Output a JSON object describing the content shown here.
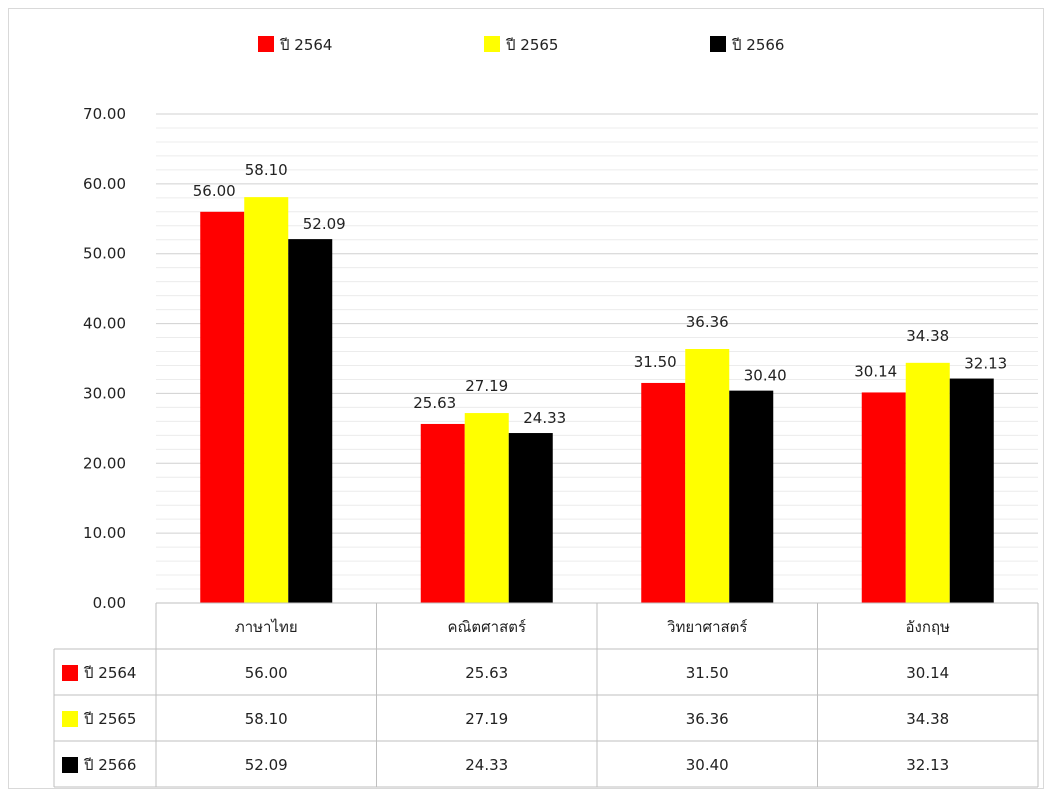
{
  "chart_data": {
    "type": "bar",
    "categories": [
      "ภาษาไทย",
      "คณิตศาสตร์",
      "วิทยาศาสตร์",
      "อังกฤษ"
    ],
    "series": [
      {
        "name": "ปี 2564",
        "color": "#ff0000",
        "values": [
          56.0,
          25.63,
          31.5,
          30.14
        ],
        "labels": [
          "56.00",
          "25.63",
          "31.50",
          "30.14"
        ]
      },
      {
        "name": "ปี 2565",
        "color": "#ffff00",
        "values": [
          58.1,
          27.19,
          36.36,
          34.38
        ],
        "labels": [
          "58.10",
          "27.19",
          "36.36",
          "34.38"
        ]
      },
      {
        "name": "ปี 2566",
        "color": "#000000",
        "values": [
          52.09,
          24.33,
          30.4,
          32.13
        ],
        "labels": [
          "52.09",
          "24.33",
          "30.40",
          "32.13"
        ]
      }
    ],
    "ylim": [
      0,
      70
    ],
    "yticks": [
      "0.00",
      "10.00",
      "20.00",
      "30.00",
      "40.00",
      "50.00",
      "60.00",
      "70.00"
    ],
    "grid": true,
    "legend_position": "top",
    "data_table": true
  }
}
